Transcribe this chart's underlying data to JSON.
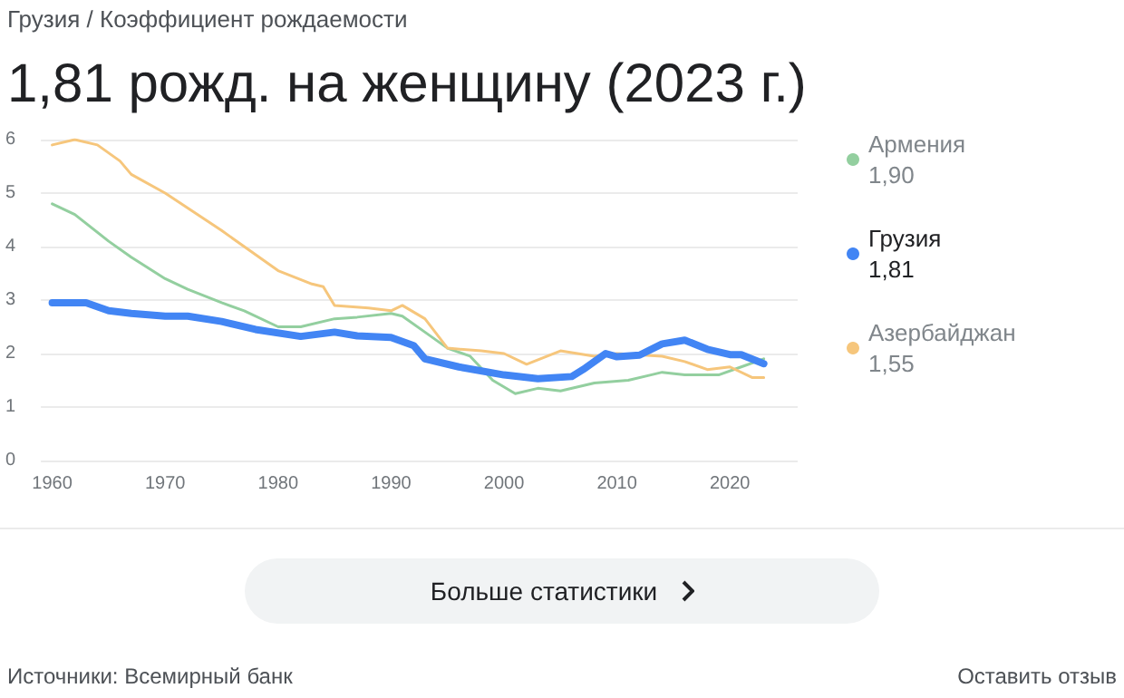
{
  "chart_data": {
    "type": "line",
    "subtitle": "Грузия / Коэффициент рождаемости",
    "title": "1,81 рожд. на женщину (2023 г.)",
    "xlim": [
      1959,
      2026
    ],
    "xticks": [
      1960,
      1970,
      1980,
      1990,
      2000,
      2010,
      2020
    ],
    "ylim": [
      0,
      6
    ],
    "yticks": [
      0,
      1,
      2,
      3,
      4,
      5,
      6
    ],
    "grid": "y",
    "legend": "right",
    "line_style": "solid",
    "series": [
      {
        "name": "Армения",
        "color": "#93cf9f",
        "x": [
          1960,
          1962,
          1965,
          1967,
          1970,
          1972,
          1975,
          1977,
          1980,
          1982,
          1985,
          1987,
          1990,
          1991,
          1993,
          1995,
          1997,
          1999,
          2001,
          2003,
          2005,
          2008,
          2011,
          2013,
          2014,
          2016,
          2019,
          2021,
          2023
        ],
        "values": [
          4.8,
          4.6,
          4.1,
          3.8,
          3.4,
          3.2,
          2.95,
          2.8,
          2.5,
          2.5,
          2.65,
          2.68,
          2.75,
          2.7,
          2.4,
          2.1,
          1.95,
          1.5,
          1.25,
          1.35,
          1.3,
          1.45,
          1.5,
          1.6,
          1.65,
          1.6,
          1.6,
          1.75,
          1.9
        ]
      },
      {
        "name": "Грузия",
        "color": "#4285f4",
        "x": [
          1960,
          1963,
          1965,
          1967,
          1970,
          1972,
          1975,
          1978,
          1982,
          1985,
          1987,
          1990,
          1992,
          1993,
          1996,
          2000,
          2003,
          2006,
          2007,
          2009,
          2010,
          2012,
          2014,
          2016,
          2018,
          2020,
          2021,
          2023
        ],
        "values": [
          2.95,
          2.95,
          2.8,
          2.75,
          2.7,
          2.7,
          2.6,
          2.45,
          2.32,
          2.4,
          2.33,
          2.3,
          2.15,
          1.9,
          1.75,
          1.6,
          1.53,
          1.57,
          1.7,
          2.0,
          1.94,
          1.97,
          2.18,
          2.25,
          2.08,
          1.98,
          1.98,
          1.81
        ]
      },
      {
        "name": "Азербайджан",
        "color": "#f6c67c",
        "x": [
          1960,
          1962,
          1964,
          1966,
          1967,
          1970,
          1975,
          1980,
          1983,
          1984,
          1985,
          1988,
          1990,
          1991,
          1993,
          1995,
          1998,
          2000,
          2002,
          2005,
          2008,
          2010,
          2014,
          2016,
          2018,
          2020,
          2022,
          2023
        ],
        "values": [
          5.9,
          6.0,
          5.9,
          5.6,
          5.35,
          5.0,
          4.3,
          3.55,
          3.3,
          3.25,
          2.9,
          2.85,
          2.8,
          2.9,
          2.65,
          2.1,
          2.05,
          2.0,
          1.8,
          2.05,
          1.95,
          2.0,
          1.95,
          1.85,
          1.7,
          1.75,
          1.55,
          1.55
        ]
      }
    ],
    "annotations": [
      "1,90",
      "1,81",
      "1,55",
      "Больше статистики",
      "Источники: Всемирный банк",
      "Оставить отзыв"
    ]
  }
}
